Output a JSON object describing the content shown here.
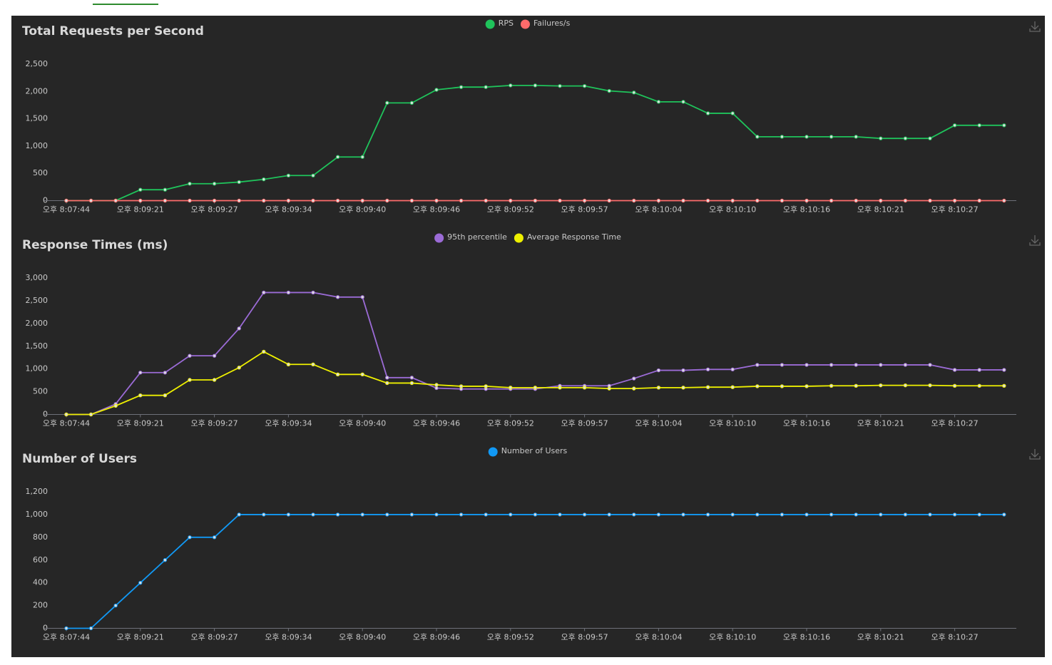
{
  "chart_data": [
    {
      "type": "line",
      "title": "Total Requests per Second",
      "categories": [
        "오후 8:07:44",
        null,
        null,
        "오후 8:09:21",
        null,
        null,
        "오후 8:09:27",
        null,
        null,
        "오후 8:09:34",
        null,
        null,
        "오후 8:09:40",
        null,
        null,
        "오후 8:09:46",
        null,
        null,
        "오후 8:09:52",
        null,
        null,
        "오후 8:09:57",
        null,
        null,
        "오후 8:10:04",
        null,
        null,
        "오후 8:10:10",
        null,
        null,
        "오후 8:10:16",
        null,
        null,
        "오후 8:10:21",
        null,
        null,
        "오후 8:10:27",
        null,
        null
      ],
      "series": [
        {
          "name": "RPS",
          "color": "#1fc35b",
          "values": [
            0,
            0,
            0,
            200,
            200,
            310,
            310,
            340,
            390,
            460,
            460,
            800,
            800,
            1790,
            1790,
            2030,
            2080,
            2080,
            2110,
            2110,
            2100,
            2100,
            2010,
            1980,
            1810,
            1810,
            1600,
            1600,
            1170,
            1170,
            1170,
            1170,
            1170,
            1140,
            1140,
            1140,
            1380,
            1380,
            1380
          ]
        },
        {
          "name": "Failures/s",
          "color": "#ff6b6b",
          "values": [
            0,
            0,
            0,
            0,
            0,
            0,
            0,
            0,
            0,
            0,
            0,
            0,
            0,
            0,
            0,
            0,
            0,
            0,
            0,
            0,
            0,
            0,
            0,
            0,
            0,
            0,
            0,
            0,
            0,
            0,
            0,
            0,
            0,
            0,
            0,
            0,
            0,
            0,
            0
          ]
        }
      ],
      "ylim": [
        0,
        2500
      ],
      "yticks": [
        0,
        500,
        {
          "value": 1000,
          "label": "1,000"
        },
        {
          "value": 1500,
          "label": "1,500"
        },
        {
          "value": 2000,
          "label": "2,000"
        },
        {
          "value": 2500,
          "label": "2,500"
        }
      ]
    },
    {
      "type": "line",
      "title": "Response Times (ms)",
      "categories": [
        "오후 8:07:44",
        null,
        null,
        "오후 8:09:21",
        null,
        null,
        "오후 8:09:27",
        null,
        null,
        "오후 8:09:34",
        null,
        null,
        "오후 8:09:40",
        null,
        null,
        "오후 8:09:46",
        null,
        null,
        "오후 8:09:52",
        null,
        null,
        "오후 8:09:57",
        null,
        null,
        "오후 8:10:04",
        null,
        null,
        "오후 8:10:10",
        null,
        null,
        "오후 8:10:16",
        null,
        null,
        "오후 8:10:21",
        null,
        null,
        "오후 8:10:27",
        null,
        null
      ],
      "series": [
        {
          "name": "95th percentile",
          "color": "#9b6bd6",
          "values": [
            0,
            0,
            230,
            920,
            920,
            1290,
            1290,
            1890,
            2680,
            2680,
            2680,
            2580,
            2580,
            810,
            810,
            580,
            560,
            560,
            560,
            560,
            630,
            630,
            630,
            790,
            970,
            970,
            990,
            990,
            1090,
            1090,
            1090,
            1090,
            1090,
            1090,
            1090,
            1090,
            980,
            980,
            980
          ]
        },
        {
          "name": "Average Response Time",
          "color": "#eef000",
          "values": [
            0,
            0,
            190,
            420,
            420,
            760,
            760,
            1030,
            1380,
            1100,
            1100,
            880,
            880,
            690,
            690,
            650,
            620,
            620,
            590,
            590,
            590,
            590,
            570,
            570,
            590,
            590,
            600,
            600,
            620,
            620,
            620,
            630,
            630,
            640,
            640,
            640,
            630,
            630,
            630
          ]
        }
      ],
      "ylim": [
        0,
        3000
      ],
      "yticks": [
        0,
        500,
        {
          "value": 1000,
          "label": "1,000"
        },
        {
          "value": 1500,
          "label": "1,500"
        },
        {
          "value": 2000,
          "label": "2,000"
        },
        {
          "value": 2500,
          "label": "2,500"
        },
        {
          "value": 3000,
          "label": "3,000"
        }
      ]
    },
    {
      "type": "line",
      "title": "Number of Users",
      "categories": [
        "오후 8:07:44",
        null,
        null,
        "오후 8:09:21",
        null,
        null,
        "오후 8:09:27",
        null,
        null,
        "오후 8:09:34",
        null,
        null,
        "오후 8:09:40",
        null,
        null,
        "오후 8:09:46",
        null,
        null,
        "오후 8:09:52",
        null,
        null,
        "오후 8:09:57",
        null,
        null,
        "오후 8:10:04",
        null,
        null,
        "오후 8:10:10",
        null,
        null,
        "오후 8:10:16",
        null,
        null,
        "오후 8:10:21",
        null,
        null,
        "오후 8:10:27",
        null,
        null
      ],
      "series": [
        {
          "name": "Number of Users",
          "color": "#1199f5",
          "values": [
            0,
            0,
            200,
            400,
            600,
            800,
            800,
            1000,
            1000,
            1000,
            1000,
            1000,
            1000,
            1000,
            1000,
            1000,
            1000,
            1000,
            1000,
            1000,
            1000,
            1000,
            1000,
            1000,
            1000,
            1000,
            1000,
            1000,
            1000,
            1000,
            1000,
            1000,
            1000,
            1000,
            1000,
            1000,
            1000,
            1000,
            1000
          ]
        }
      ],
      "ylim": [
        0,
        1200
      ],
      "yticks": [
        0,
        200,
        400,
        600,
        800,
        {
          "value": 1000,
          "label": "1,000"
        },
        {
          "value": 1200,
          "label": "1,200"
        }
      ]
    }
  ]
}
